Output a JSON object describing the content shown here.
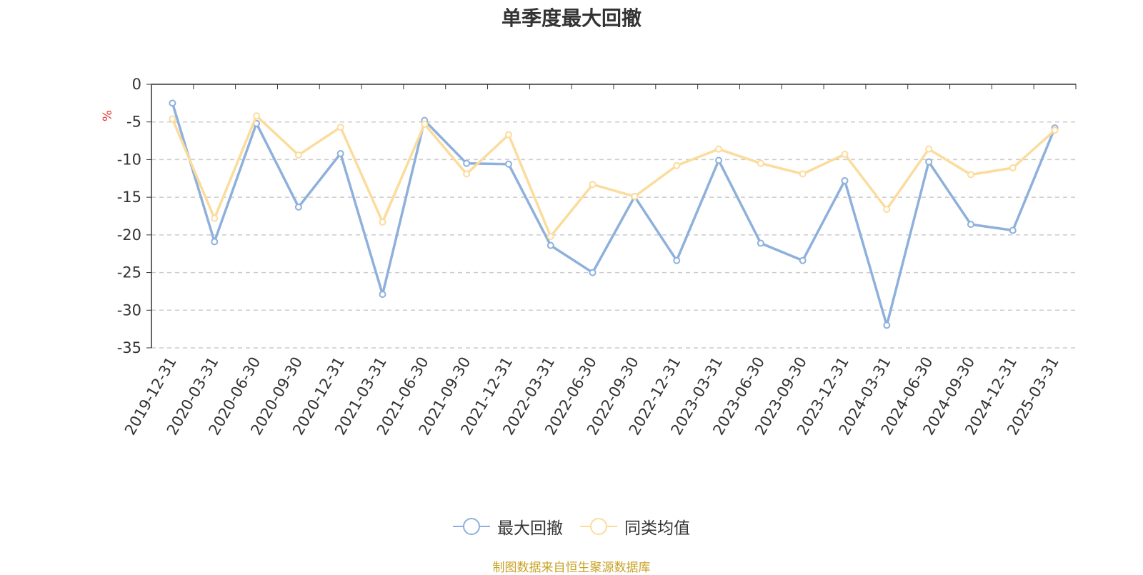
{
  "chart_data": {
    "type": "line",
    "title": "单季度最大回撤",
    "ylabel": "%",
    "ylim": [
      -35,
      0
    ],
    "yticks": [
      0,
      -5,
      -10,
      -15,
      -20,
      -25,
      -30,
      -35
    ],
    "grid": true,
    "legend_position": "bottom",
    "categories": [
      "2019-12-31",
      "2020-03-31",
      "2020-06-30",
      "2020-09-30",
      "2020-12-31",
      "2021-03-31",
      "2021-06-30",
      "2021-09-30",
      "2021-12-31",
      "2022-03-31",
      "2022-06-30",
      "2022-09-30",
      "2022-12-31",
      "2023-03-31",
      "2023-06-30",
      "2023-09-30",
      "2023-12-31",
      "2024-03-31",
      "2024-06-30",
      "2024-09-30",
      "2024-12-31",
      "2025-03-31"
    ],
    "series": [
      {
        "name": "最大回撤",
        "color": "#8eb0dc",
        "values": [
          -2.5,
          -20.9,
          -5.2,
          -16.3,
          -9.2,
          -27.9,
          -4.8,
          -10.5,
          -10.6,
          -21.4,
          -25.0,
          -14.9,
          -23.4,
          -10.1,
          -21.1,
          -23.4,
          -12.8,
          -32.0,
          -10.3,
          -18.6,
          -19.4,
          -5.8
        ]
      },
      {
        "name": "同类均值",
        "color": "#fbdc9c",
        "values": [
          -4.6,
          -17.8,
          -4.2,
          -9.4,
          -5.7,
          -18.3,
          -5.3,
          -11.9,
          -6.7,
          -20.2,
          -13.3,
          -14.9,
          -10.8,
          -8.6,
          -10.5,
          -11.9,
          -9.3,
          -16.6,
          -8.6,
          -12.0,
          -11.1,
          -6.1
        ]
      }
    ],
    "source_note": "制图数据来自恒生聚源数据库"
  }
}
